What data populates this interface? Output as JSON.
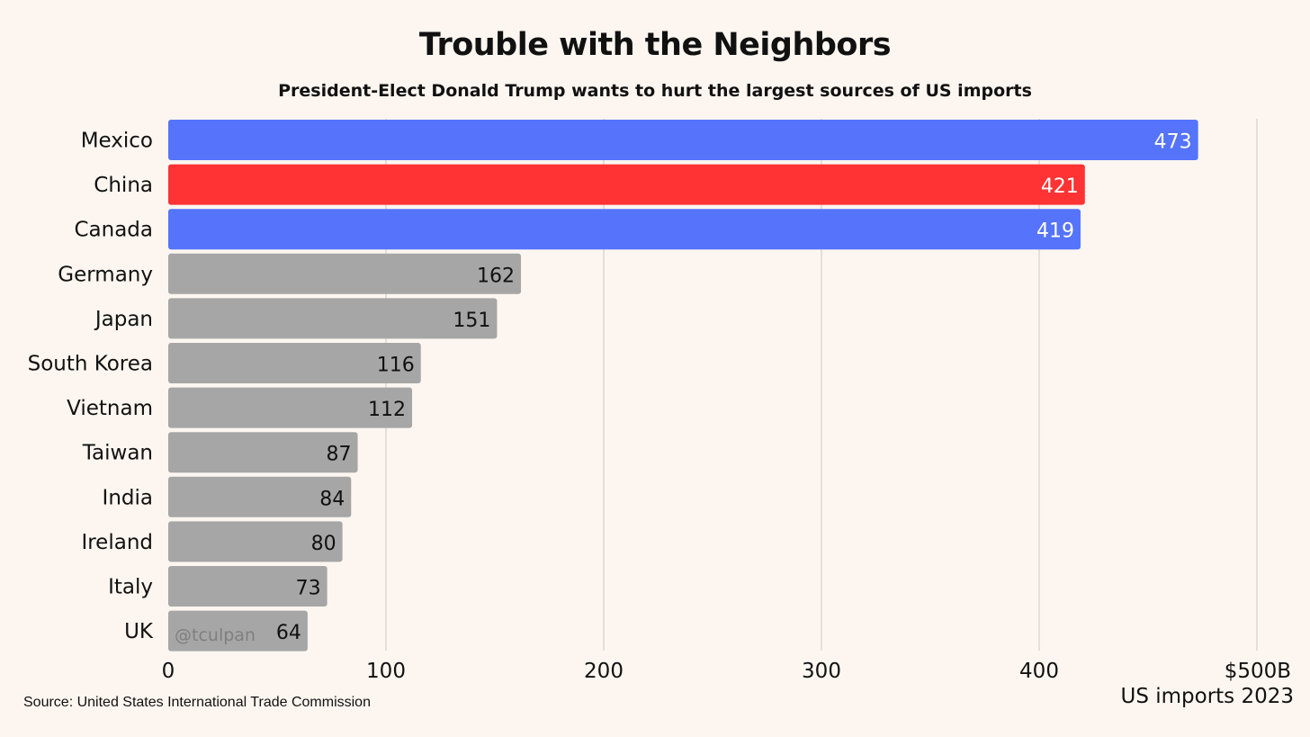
{
  "title": "Trouble with the Neighbors",
  "subtitle": "President-Elect Donald Trump wants to hurt the largest sources of US imports",
  "source": "Source: United States International Trade Commission",
  "unit_label": "US imports 2023",
  "watermark": "@tculpan",
  "colors": {
    "background": "#fdf6f0",
    "blue": "#5573fb",
    "red": "#ff3333",
    "gray": "#a6a6a6",
    "grid": "#c8c8c8"
  },
  "chart_data": {
    "type": "bar",
    "orientation": "horizontal",
    "categories": [
      "Mexico",
      "China",
      "Canada",
      "Germany",
      "Japan",
      "South Korea",
      "Vietnam",
      "Taiwan",
      "India",
      "Ireland",
      "Italy",
      "UK"
    ],
    "values": [
      473,
      421,
      419,
      162,
      151,
      116,
      112,
      87,
      84,
      80,
      73,
      64
    ],
    "data_labels": [
      "473",
      "421",
      "419",
      "162",
      "151",
      "116",
      "112",
      "87",
      "84",
      "80",
      "73",
      "64"
    ],
    "bar_colors": [
      "#5573fb",
      "#ff3333",
      "#5573fb",
      "#a6a6a6",
      "#a6a6a6",
      "#a6a6a6",
      "#a6a6a6",
      "#a6a6a6",
      "#a6a6a6",
      "#a6a6a6",
      "#a6a6a6",
      "#a6a6a6"
    ],
    "label_colors": [
      "#ffffff",
      "#ffffff",
      "#ffffff",
      "#111111",
      "#111111",
      "#111111",
      "#111111",
      "#111111",
      "#111111",
      "#111111",
      "#111111",
      "#111111"
    ],
    "xlim": [
      0,
      500
    ],
    "xticks": [
      0,
      100,
      200,
      300,
      400,
      500
    ],
    "xtick_labels": [
      "0",
      "100",
      "200",
      "300",
      "400",
      "$500B"
    ],
    "xlabel": "US imports 2023",
    "grid": true
  }
}
